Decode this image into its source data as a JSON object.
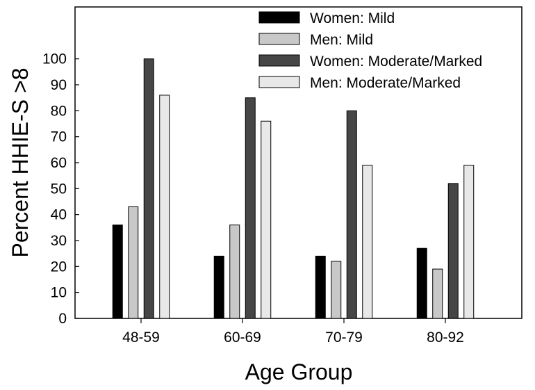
{
  "chart_data": {
    "type": "bar",
    "categories": [
      "48-59",
      "60-69",
      "70-79",
      "80-92"
    ],
    "series": [
      {
        "name": "Women: Mild",
        "color": "#000000",
        "values": [
          36,
          24,
          24,
          27
        ]
      },
      {
        "name": "Men: Mild",
        "color": "#c8c8c8",
        "values": [
          43,
          36,
          22,
          19
        ]
      },
      {
        "name": "Women: Moderate/Marked",
        "color": "#464646",
        "values": [
          100,
          85,
          80,
          52
        ]
      },
      {
        "name": "Men: Moderate/Marked",
        "color": "#e8e8e8",
        "values": [
          86,
          76,
          59,
          59
        ]
      }
    ],
    "xlabel": "Age Group",
    "ylabel": "Percent HHIE-S >8",
    "ylim": [
      0,
      120
    ],
    "yticks": [
      0,
      10,
      20,
      30,
      40,
      50,
      60,
      70,
      80,
      90,
      100
    ],
    "grid": false,
    "legend_position": "top-right"
  }
}
